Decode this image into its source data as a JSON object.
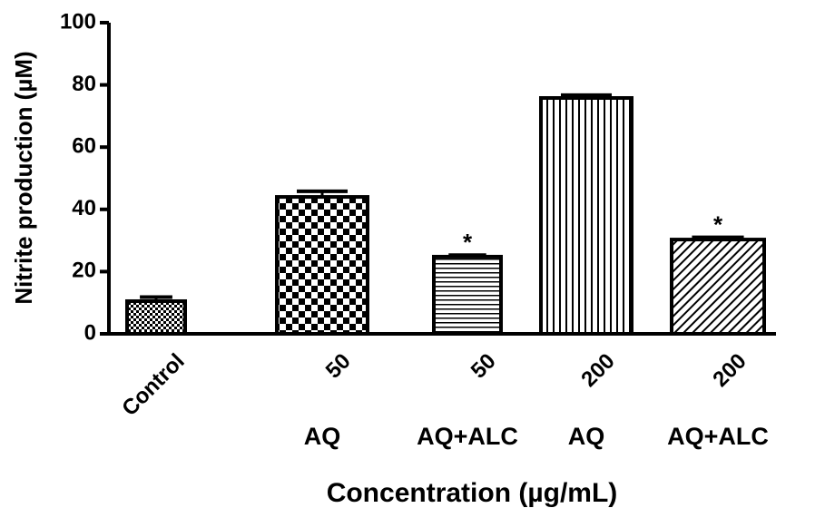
{
  "chart_data": {
    "type": "bar",
    "x_label": "Concentration (µg/mL)",
    "y_label": "Nitrite production (µM)",
    "categories": [
      "Control",
      "50",
      "50",
      "200",
      "200"
    ],
    "groups": [
      null,
      "AQ",
      "AQ+ALC",
      "AQ",
      "AQ+ALC"
    ],
    "values": [
      10.5,
      44,
      24.8,
      75.8,
      30.3
    ],
    "errors": [
      1.3,
      1.8,
      0.5,
      0.9,
      0.7
    ],
    "annotations": [
      null,
      null,
      "*",
      null,
      "*"
    ],
    "color": "#000000",
    "ylim": [
      0,
      100
    ],
    "yticks": [
      0,
      20,
      40,
      60,
      80,
      100
    ]
  }
}
